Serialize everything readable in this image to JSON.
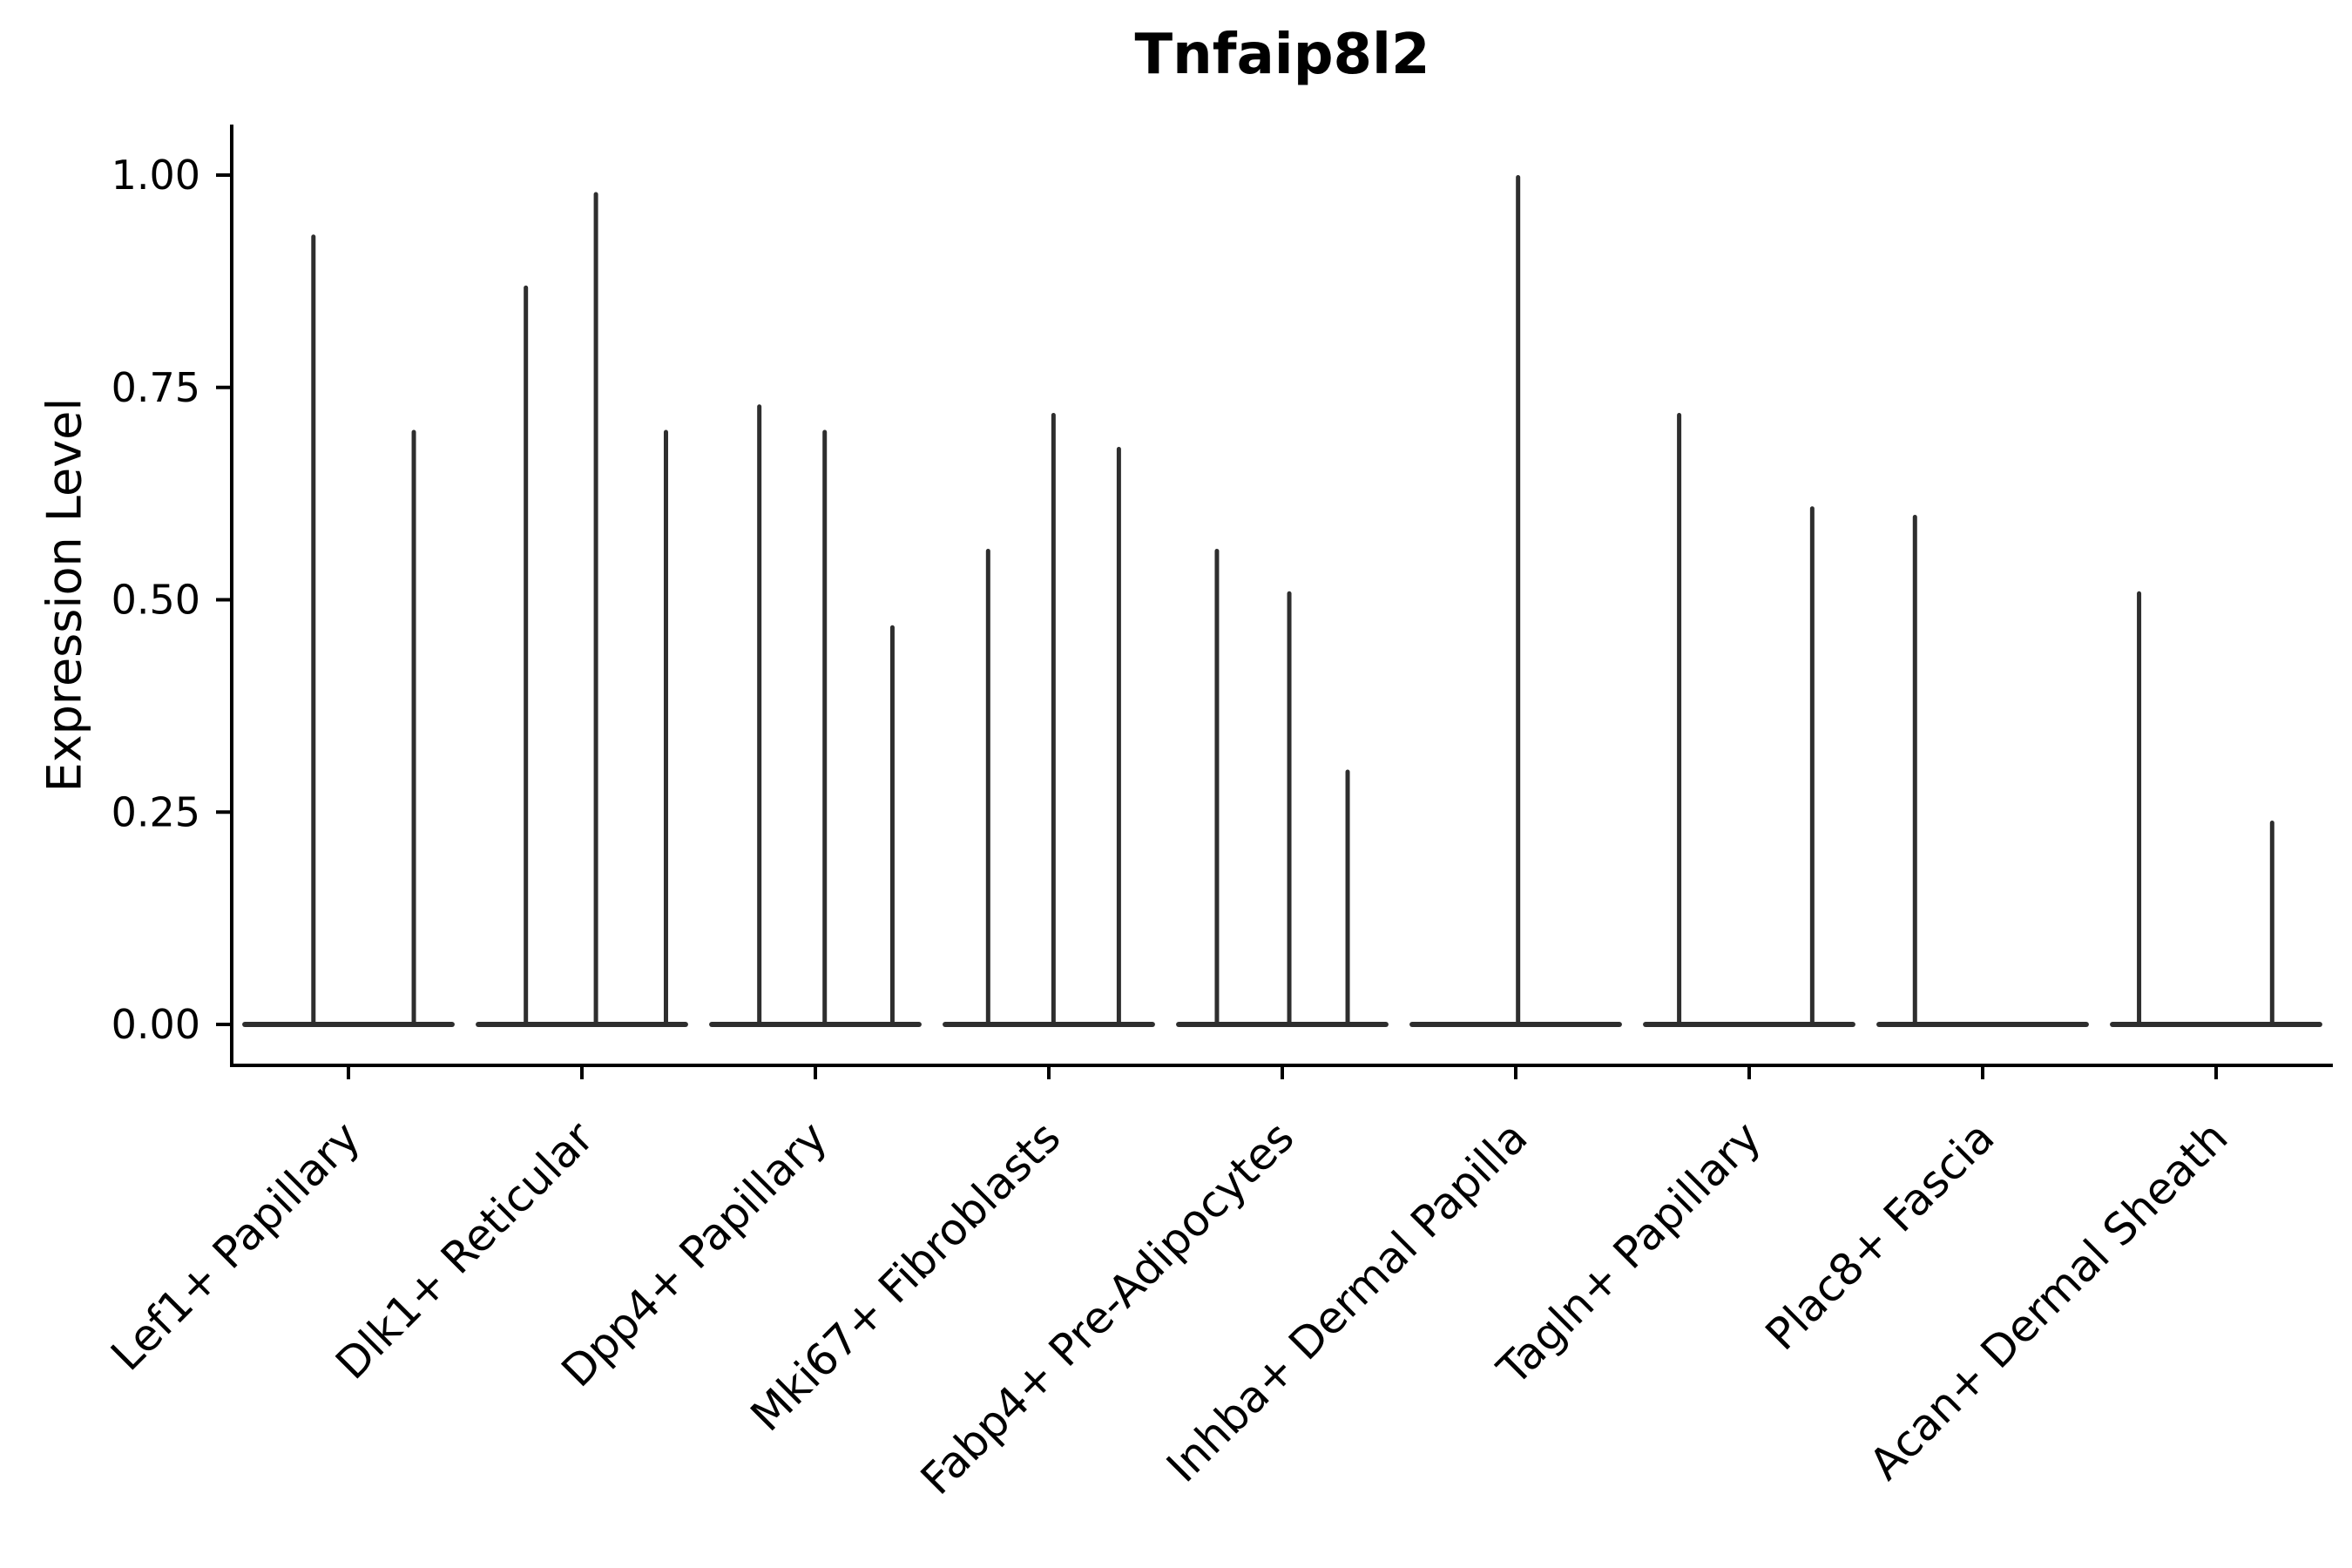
{
  "chart_data": {
    "type": "violin",
    "title": "Tnfaip8l2",
    "ylabel": "Expression Level",
    "xlabel": "",
    "ylim": [
      0,
      1.06
    ],
    "yticks": [
      "0.00",
      "0.25",
      "0.50",
      "0.75",
      "1.00"
    ],
    "grid": false,
    "legend": "none",
    "ink_color": "#2e2e2e",
    "axis_color": "#000000",
    "categories": [
      "Lef1+ Papillary",
      "Dlk1+ Reticular",
      "Dpp4+ Papillary",
      "Mki67+ Fibroblasts",
      "Fabp4+ Pre-Adipocytes",
      "Inhba+ Dermal Papilla",
      "Tagln+ Papillary",
      "Plac8+ Fascia",
      "Acan+ Dermal Sheath"
    ],
    "series": [
      {
        "category": "Lef1+ Papillary",
        "violins": [
          {
            "offset": 0.35,
            "max": 0.93
          },
          {
            "offset": 0.78,
            "max": 0.7
          }
        ]
      },
      {
        "category": "Dlk1+ Reticular",
        "violins": [
          {
            "offset": 0.26,
            "max": 0.87
          },
          {
            "offset": 0.56,
            "max": 0.98
          },
          {
            "offset": 0.86,
            "max": 0.7
          }
        ]
      },
      {
        "category": "Dpp4+ Papillary",
        "violins": [
          {
            "offset": 0.26,
            "max": 0.73
          },
          {
            "offset": 0.54,
            "max": 0.7
          },
          {
            "offset": 0.83,
            "max": 0.47
          }
        ]
      },
      {
        "category": "Mki67+ Fibroblasts",
        "violins": [
          {
            "offset": 0.24,
            "max": 0.56
          },
          {
            "offset": 0.52,
            "max": 0.72
          },
          {
            "offset": 0.8,
            "max": 0.68
          }
        ]
      },
      {
        "category": "Fabp4+ Pre-Adipocytes",
        "violins": [
          {
            "offset": 0.22,
            "max": 0.56
          },
          {
            "offset": 0.53,
            "max": 0.51
          },
          {
            "offset": 0.78,
            "max": 0.3
          }
        ]
      },
      {
        "category": "Inhba+ Dermal Papilla",
        "violins": [
          {
            "offset": 0.51,
            "max": 1.0
          }
        ]
      },
      {
        "category": "Tagln+ Papillary",
        "violins": [
          {
            "offset": 0.2,
            "max": 0.72
          },
          {
            "offset": 0.77,
            "max": 0.61
          }
        ]
      },
      {
        "category": "Plac8+ Fascia",
        "violins": [
          {
            "offset": 0.21,
            "max": 0.6
          }
        ]
      },
      {
        "category": "Acan+ Dermal Sheath",
        "violins": [
          {
            "offset": 0.17,
            "max": 0.51
          },
          {
            "offset": 0.74,
            "max": 0.24
          }
        ]
      }
    ]
  }
}
